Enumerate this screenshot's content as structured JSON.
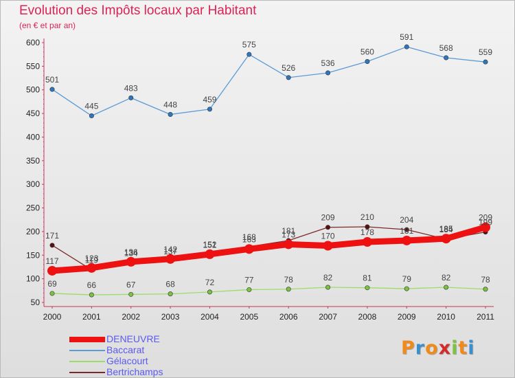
{
  "title": "Evolution des Impôts locaux par Habitant",
  "subtitle": "(en € et par an)",
  "logo": {
    "text": "Proxiti",
    "colors": [
      "#f08a1a",
      "#3a8fd0",
      "#f08a1a",
      "#d42a2a",
      "#7cc243",
      "#f08a1a",
      "#3a8fd0"
    ]
  },
  "chart_data": {
    "type": "line",
    "x": [
      "2000",
      "2001",
      "2002",
      "2003",
      "2004",
      "2005",
      "2006",
      "2007",
      "2008",
      "2009",
      "2010",
      "2011"
    ],
    "ylim": [
      50,
      600
    ],
    "yticks": [
      50,
      100,
      150,
      200,
      250,
      300,
      350,
      400,
      450,
      500,
      550,
      600
    ],
    "grid": false,
    "legend_position": "bottom-left",
    "series": [
      {
        "name": "Baccarat",
        "color": "#5b9bd5",
        "marker": "#2f77bd",
        "values": [
          501,
          445,
          483,
          448,
          459,
          575,
          526,
          536,
          560,
          591,
          568,
          559
        ]
      },
      {
        "name": "Gélacourt",
        "color": "#99dd66",
        "marker": "#7cc243",
        "values": [
          69,
          66,
          67,
          68,
          72,
          77,
          78,
          82,
          81,
          79,
          82,
          78
        ]
      },
      {
        "name": "Bertrichamps",
        "color": "#7a2a2a",
        "marker": "#5a1010",
        "values": [
          171,
          119,
          134,
          137,
          151,
          168,
          181,
          209,
          210,
          204,
          184,
          199
        ]
      },
      {
        "name": "DENEUVRE",
        "color": "#ee1111",
        "marker": "#ee1111",
        "values": [
          117,
          123,
          136,
          142,
          152,
          163,
          173,
          170,
          178,
          181,
          185,
          209
        ]
      }
    ]
  },
  "legend": [
    {
      "label": "DENEUVRE",
      "color": "#ee1111"
    },
    {
      "label": "Baccarat",
      "color": "#5b9bd5"
    },
    {
      "label": "Gélacourt",
      "color": "#99dd66"
    },
    {
      "label": "Bertrichamps",
      "color": "#7a2a2a"
    }
  ]
}
